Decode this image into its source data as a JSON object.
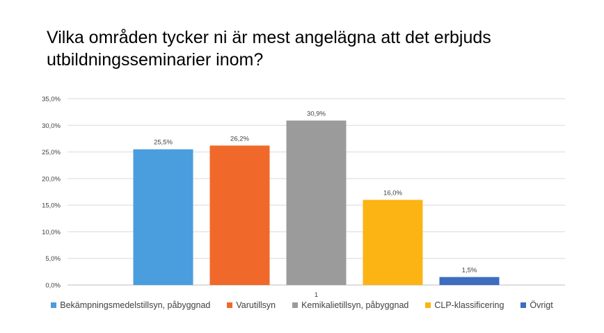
{
  "chart_data": {
    "type": "bar",
    "title": "Vilka områden tycker ni är mest angelägna att det erbjuds utbildningsseminarier inom?",
    "categories": [
      "1"
    ],
    "series": [
      {
        "name": "Bekämpningsmedelstillsyn, påbyggnad",
        "values": [
          25.5
        ],
        "label": "25,5%",
        "color": "#4a9ede"
      },
      {
        "name": "Varutillsyn",
        "values": [
          26.2
        ],
        "label": "26,2%",
        "color": "#f0692a"
      },
      {
        "name": "Kemikalietillsyn, påbyggnad",
        "values": [
          30.9
        ],
        "label": "30,9%",
        "color": "#9b9b9b"
      },
      {
        "name": "CLP-klassificering",
        "values": [
          16.0
        ],
        "label": "16,0%",
        "color": "#fbb414"
      },
      {
        "name": "Övrigt",
        "values": [
          1.5
        ],
        "label": "1,5%",
        "color": "#3d6cc0"
      }
    ],
    "ylim": [
      0,
      35
    ],
    "yticks": [
      0,
      5,
      10,
      15,
      20,
      25,
      30,
      35
    ],
    "ytick_labels": [
      "0,0%",
      "5,0%",
      "10,0%",
      "15,0%",
      "20,0%",
      "25,0%",
      "30,0%",
      "35,0%"
    ],
    "grid": true,
    "legend_position": "bottom"
  }
}
